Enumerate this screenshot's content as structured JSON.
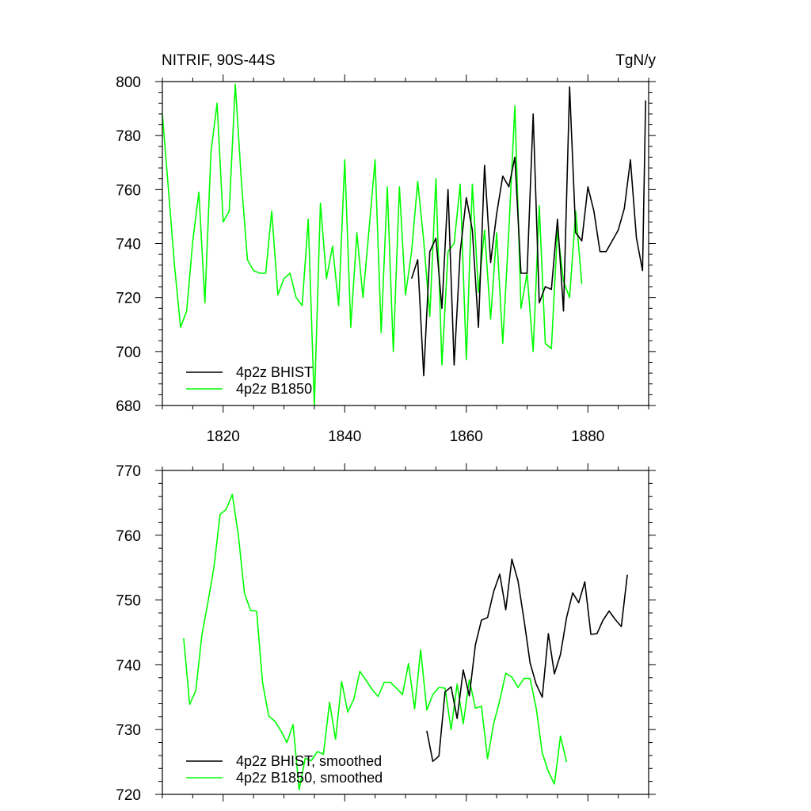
{
  "colors": {
    "bhist": "#000000",
    "b1850": "#00ff00"
  },
  "chart_data": [
    {
      "type": "line",
      "title": "NITRIF, 90S-44S",
      "units": "TgN/y",
      "xlim": [
        1810,
        1890
      ],
      "ylim": [
        680,
        800
      ],
      "xticks": [
        1820,
        1840,
        1860,
        1880
      ],
      "yticks": [
        680,
        700,
        720,
        740,
        760,
        780,
        800
      ],
      "legend_position": "bottom-left",
      "series": [
        {
          "name": "4p2z BHIST",
          "x": [
            1851,
            1852,
            1853,
            1854,
            1855,
            1856,
            1857,
            1858,
            1859,
            1860,
            1861,
            1862,
            1863,
            1864,
            1865,
            1866,
            1867,
            1868,
            1869,
            1870,
            1871,
            1872,
            1873,
            1874,
            1875,
            1876,
            1877,
            1878,
            1879,
            1880,
            1881,
            1882,
            1883,
            1884,
            1885,
            1886,
            1887,
            1888,
            1889
          ],
          "y": [
            727,
            734,
            691,
            737,
            742,
            716,
            760,
            695,
            737,
            757,
            745,
            709,
            769,
            733,
            751,
            765,
            761,
            772,
            729,
            729,
            788,
            718,
            724,
            723,
            749,
            715,
            798,
            744,
            741,
            761,
            752,
            737,
            737,
            741,
            745,
            753,
            771,
            742,
            730
          ],
          "extra_points": [
            [
              1889.5,
              793
            ]
          ]
        },
        {
          "name": "4p2z B1850",
          "x": [
            1810,
            1811,
            1812,
            1813,
            1814,
            1815,
            1816,
            1817,
            1818,
            1819,
            1820,
            1821,
            1822,
            1823,
            1824,
            1825,
            1826,
            1827,
            1828,
            1829,
            1830,
            1831,
            1832,
            1833,
            1834,
            1835,
            1836,
            1837,
            1838,
            1839,
            1840,
            1841,
            1842,
            1843,
            1844,
            1845,
            1846,
            1847,
            1848,
            1849,
            1850,
            1851,
            1852,
            1853,
            1854,
            1855,
            1856,
            1857,
            1858,
            1859,
            1860,
            1861,
            1862,
            1863,
            1864,
            1865,
            1866,
            1867,
            1868,
            1869,
            1870,
            1871,
            1872,
            1873,
            1874,
            1875,
            1876,
            1877,
            1878,
            1879
          ],
          "y": [
            788,
            760,
            732,
            709,
            715,
            741,
            759,
            718,
            774,
            792,
            748,
            752,
            799,
            763,
            734,
            730,
            729,
            729,
            752,
            721,
            727,
            729,
            720,
            717,
            749,
            680,
            755,
            727,
            739,
            717,
            771,
            709,
            744,
            720,
            745,
            771,
            707,
            761,
            700,
            761,
            721,
            737,
            763,
            741,
            713,
            764,
            695,
            737,
            740,
            762,
            697,
            762,
            722,
            745,
            712,
            744,
            703,
            745,
            791,
            716,
            729,
            700,
            754,
            703,
            701,
            745,
            726,
            720,
            752,
            725
          ]
        }
      ]
    },
    {
      "type": "line",
      "title": "",
      "xlim": [
        1810,
        1890
      ],
      "ylim": [
        720,
        770
      ],
      "yticks": [
        720,
        730,
        740,
        750,
        760,
        770
      ],
      "legend_position": "bottom-left",
      "series": [
        {
          "name": "4p2z BHIST, smoothed",
          "x": [
            1853.5,
            1854.5,
            1855.5,
            1856.5,
            1857.5,
            1858.5,
            1859.5,
            1860.5,
            1861.5,
            1862.5,
            1863.5,
            1864.5,
            1865.5,
            1866.5,
            1867.5,
            1868.5,
            1869.5,
            1870.5,
            1871.5,
            1872.5,
            1873.5,
            1874.5,
            1875.5,
            1876.5,
            1877.5,
            1878.5,
            1879.5,
            1880.5,
            1881.5,
            1882.5,
            1883.5,
            1884.5,
            1885.5,
            1886.5
          ],
          "y": [
            729.8,
            725.1,
            725.9,
            735.8,
            736.6,
            731.7,
            739.2,
            735.2,
            743.1,
            746.9,
            747.3,
            751.3,
            754.0,
            748.5,
            756.3,
            753.0,
            746.9,
            740.3,
            737.0,
            735.0,
            744.8,
            738.6,
            741.6,
            747.3,
            751.1,
            749.6,
            752.8,
            744.7,
            744.8,
            746.9,
            748.3,
            747.0,
            745.9,
            753.9
          ]
        },
        {
          "name": "4p2z B1850, smoothed",
          "x": [
            1813.5,
            1814.5,
            1815.5,
            1816.5,
            1817.5,
            1818.5,
            1819.5,
            1820.5,
            1821.5,
            1822.5,
            1823.5,
            1824.5,
            1825.5,
            1826.5,
            1827.5,
            1828.5,
            1829.5,
            1830.5,
            1831.5,
            1832.5,
            1833.5,
            1834.5,
            1835.5,
            1836.5,
            1837.5,
            1838.5,
            1839.5,
            1840.5,
            1841.5,
            1842.5,
            1843.5,
            1844.5,
            1845.5,
            1846.5,
            1847.5,
            1848.5,
            1849.5,
            1850.5,
            1851.5,
            1852.5,
            1853.5,
            1854.5,
            1855.5,
            1856.5,
            1857.5,
            1858.5,
            1859.5,
            1860.5,
            1861.5,
            1862.5,
            1863.5,
            1864.5,
            1865.5,
            1866.5,
            1867.5,
            1868.5,
            1869.5,
            1870.5,
            1871.5,
            1872.5,
            1873.5,
            1874.5,
            1875.5,
            1876.5
          ],
          "y": [
            744.1,
            733.9,
            736.0,
            744.6,
            749.7,
            755.1,
            763.2,
            764.0,
            766.3,
            760.1,
            751.1,
            748.4,
            748.3,
            737.2,
            732.1,
            731.3,
            729.8,
            728.0,
            730.8,
            720.7,
            725.6,
            725.2,
            726.6,
            726.2,
            734.2,
            728.5,
            737.4,
            732.7,
            734.7,
            739.0,
            737.6,
            736.2,
            735.1,
            737.3,
            737.3,
            736.4,
            735.4,
            740.2,
            733.2,
            742.3,
            733.0,
            735.4,
            736.5,
            736.4,
            730.0,
            737.0,
            730.9,
            737.7,
            733.3,
            733.6,
            725.5,
            730.9,
            734.5,
            738.7,
            738.1,
            736.5,
            737.9,
            737.9,
            733.3,
            726.4,
            723.5,
            721.6,
            729.0,
            725.0
          ]
        }
      ]
    }
  ]
}
